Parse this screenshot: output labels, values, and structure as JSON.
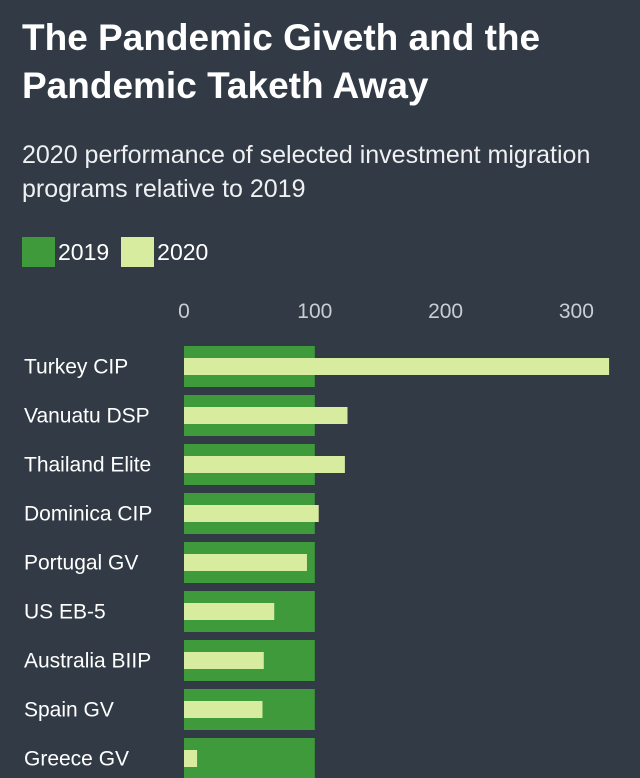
{
  "chart_data": {
    "type": "bar",
    "orientation": "horizontal",
    "title": "The Pandemic Giveth and the Pandemic Taketh Away",
    "subtitle": "2020 performance of selected investment migration programs relative to 2019",
    "categories": [
      "Turkey CIP",
      "Vanuatu DSP",
      "Thailand Elite",
      "Dominica CIP",
      "Portugal GV",
      "US EB-5",
      "Australia BIIP",
      "Spain GV",
      "Greece GV"
    ],
    "series": [
      {
        "name": "2019",
        "color": "#3e9a3a",
        "values": [
          100,
          100,
          100,
          100,
          100,
          100,
          100,
          100,
          100
        ]
      },
      {
        "name": "2020",
        "color": "#d8eca0",
        "values": [
          325,
          125,
          123,
          103,
          94,
          69,
          61,
          60,
          10
        ]
      }
    ],
    "xticks": [
      0,
      100,
      200,
      300
    ],
    "xlim": [
      0,
      330
    ],
    "grid": false,
    "legend_position": "top-left"
  }
}
